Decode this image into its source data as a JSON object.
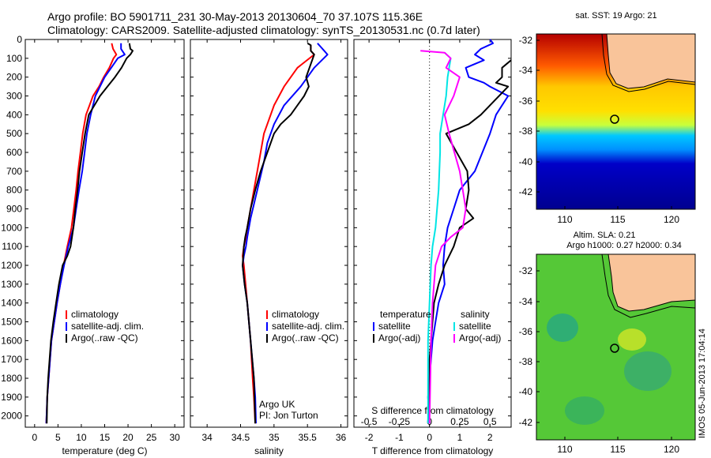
{
  "header": {
    "line1": "Argo profile: BO 5901711_231 30-May-2013 20130604_70 37.107S 115.36E",
    "line2": "Climatology: CARS2009. Satellite-adjusted climatology: synTS_20130531.nc (0.7d later)"
  },
  "colors": {
    "climatology": "#ff0000",
    "satellite": "#0000ff",
    "argo": "#000000",
    "salinity_satellite": "#00e5e5",
    "salinity_argo": "#ff00ff",
    "land": "#f9c49a"
  },
  "maps": {
    "sst_title": "sat. SST: 19 Argo: 21",
    "sla_title_1": "Altim. SLA: 0.21",
    "sla_title_2": "Argo h1000: 0.27 h2000: 0.34",
    "lat_ticks": [
      "-32",
      "-34",
      "-36",
      "-38",
      "-40",
      "-42"
    ],
    "lon_ticks": [
      "110",
      "115",
      "120"
    ],
    "timestamp": "IMOS 05-Jun-2013 17:04:14"
  },
  "legends": {
    "temp": [
      "climatology",
      "satellite-adj. clim.",
      "Argo(..raw -QC)"
    ],
    "sal": [
      "climatology",
      "satellite-adj. clim.",
      "Argo(..raw -QC)"
    ],
    "diff_headers": [
      "temperature",
      "salinity"
    ],
    "diff_temp": [
      "satellite",
      "Argo(-adj)"
    ],
    "diff_sal": [
      "satellite",
      "Argo(-adj)"
    ]
  },
  "annotations": {
    "argo_uk": "Argo UK",
    "pi": "PI: Jon Turton"
  },
  "chart_data": [
    {
      "type": "line",
      "xlabel": "temperature (deg C)",
      "ylabel": "",
      "xlim": [
        -2,
        32
      ],
      "ylim": [
        2060,
        0
      ],
      "xticks": [
        0,
        5,
        10,
        15,
        20,
        25,
        30
      ],
      "yticks": [
        0,
        100,
        200,
        300,
        400,
        500,
        600,
        700,
        800,
        900,
        1000,
        1100,
        1200,
        1300,
        1400,
        1500,
        1600,
        1700,
        1800,
        1900,
        2000
      ],
      "series": [
        {
          "name": "climatology",
          "x": [
            16.5,
            16.8,
            17.5,
            16.9,
            16.0,
            14.8,
            13.8,
            12.5,
            11.0,
            10.3,
            9.8,
            9.3,
            8.9,
            8.4,
            7.9,
            7.0,
            6.2,
            5.5,
            4.8,
            4.2,
            3.6,
            3.0,
            2.7,
            2.5
          ],
          "y": [
            20,
            50,
            80,
            100,
            150,
            200,
            250,
            300,
            400,
            500,
            600,
            700,
            800,
            900,
            1000,
            1100,
            1200,
            1300,
            1400,
            1500,
            1600,
            1800,
            1900,
            2040
          ]
        },
        {
          "name": "satellite-adj. clim.",
          "x": [
            18.5,
            18.5,
            19.3,
            17.8,
            16.4,
            15.0,
            13.0,
            12.0,
            11.2,
            10.7,
            10.2,
            9.5,
            8.9,
            8.3,
            7.2,
            6.3,
            5.5,
            4.8,
            4.2,
            3.6,
            3.0,
            2.7,
            2.5
          ],
          "y": [
            20,
            50,
            80,
            100,
            150,
            200,
            300,
            400,
            500,
            600,
            700,
            800,
            900,
            1000,
            1100,
            1200,
            1300,
            1400,
            1500,
            1600,
            1800,
            1900,
            2040
          ]
        },
        {
          "name": "Argo(..raw -QC)",
          "x": [
            20.3,
            20.5,
            21.0,
            20.5,
            19.7,
            18.6,
            17.2,
            15.6,
            14.0,
            12.8,
            11.6,
            10.8,
            10.2,
            9.6,
            9.2,
            8.7,
            8.3,
            7.7,
            7.0,
            6.0,
            5.2,
            4.6,
            4.0,
            3.5,
            2.9,
            2.7,
            2.6
          ],
          "y": [
            20,
            50,
            60,
            80,
            100,
            150,
            200,
            250,
            300,
            350,
            400,
            500,
            600,
            700,
            800,
            900,
            1000,
            1100,
            1150,
            1200,
            1300,
            1400,
            1500,
            1600,
            1800,
            1900,
            2040
          ]
        }
      ]
    },
    {
      "type": "line",
      "xlabel": "salinity",
      "ylabel": "",
      "xlim": [
        33.75,
        36.1
      ],
      "ylim": [
        2060,
        0
      ],
      "xticks": [
        34,
        34.5,
        35,
        35.5,
        36
      ],
      "series": [
        {
          "name": "climatology",
          "x": [
            35.55,
            35.55,
            35.6,
            35.35,
            35.15,
            35.0,
            34.85,
            34.8,
            34.75,
            34.7,
            34.65,
            34.6,
            34.58,
            34.55,
            34.53,
            34.55,
            34.6,
            34.65,
            34.68,
            34.7,
            34.72
          ],
          "y": [
            30,
            60,
            80,
            150,
            250,
            350,
            500,
            600,
            700,
            800,
            900,
            1000,
            1050,
            1100,
            1150,
            1200,
            1400,
            1600,
            1800,
            1900,
            2040
          ]
        },
        {
          "name": "satellite-adj. clim.",
          "x": [
            35.65,
            35.7,
            35.75,
            35.8,
            35.6,
            35.4,
            35.15,
            35.0,
            34.9,
            34.85,
            34.75,
            34.65,
            34.6,
            34.58,
            34.55,
            34.53,
            34.56,
            34.6,
            34.65,
            34.7,
            34.72,
            34.73
          ],
          "y": [
            20,
            40,
            60,
            80,
            150,
            250,
            350,
            450,
            550,
            650,
            800,
            950,
            1050,
            1100,
            1150,
            1200,
            1300,
            1400,
            1600,
            1800,
            1900,
            2040
          ]
        },
        {
          "name": "Argo(..raw -QC)",
          "x": [
            35.5,
            35.55,
            35.55,
            35.6,
            35.48,
            35.52,
            35.45,
            35.25,
            35.1,
            35.0,
            34.9,
            34.8,
            34.72,
            34.65,
            34.6,
            34.57,
            34.55,
            34.53,
            34.56,
            34.6,
            34.65,
            34.7,
            34.72
          ],
          "y": [
            20,
            30,
            60,
            80,
            200,
            250,
            300,
            400,
            450,
            500,
            600,
            700,
            800,
            900,
            1000,
            1050,
            1100,
            1200,
            1300,
            1400,
            1600,
            1800,
            2040
          ]
        }
      ]
    },
    {
      "type": "line",
      "xlabel": "T difference from climatology",
      "xlim": [
        -2.5,
        2.7
      ],
      "xticks": [
        -2,
        -1,
        0,
        1,
        2
      ],
      "secondary_xlabel": "S difference from climatology",
      "secondary_xticks": [
        -0.5,
        -0.25,
        0,
        0.25,
        0.5
      ],
      "ylim": [
        2060,
        0
      ],
      "series": [
        {
          "name": "temperature satellite",
          "x": [
            2.0,
            2.1,
            1.7,
            1.5,
            1.8,
            1.2,
            1.3,
            1.8,
            2.0,
            2.6,
            2.4,
            2.2,
            2.0,
            1.5,
            1.0,
            0.8,
            0.6,
            0.5,
            0.45,
            0.5,
            0.3,
            0.2,
            0.1,
            0.05,
            0.0,
            -0.05,
            0.0
          ],
          "y": [
            0,
            20,
            50,
            80,
            110,
            150,
            200,
            230,
            250,
            300,
            350,
            400,
            500,
            700,
            800,
            900,
            1000,
            1100,
            1200,
            1300,
            1400,
            1500,
            1600,
            1700,
            1800,
            1900,
            2040
          ]
        },
        {
          "name": "temperature Argo(-adj)",
          "x": [
            2.7,
            2.4,
            2.4,
            2.2,
            2.6,
            1.7,
            1.3,
            0.55,
            0.9,
            1.25,
            1.3,
            1.2,
            1.45,
            1.0,
            0.8,
            0.5,
            0.3,
            0.15,
            0.1,
            0.05,
            0.0,
            0.0,
            -0.05
          ],
          "y": [
            110,
            150,
            200,
            230,
            250,
            400,
            450,
            500,
            600,
            700,
            800,
            900,
            950,
            1000,
            1100,
            1200,
            1300,
            1400,
            1500,
            1600,
            1700,
            1800,
            2040
          ]
        },
        {
          "name": "salinity satellite",
          "x": [
            0.5,
            0.7,
            0.6,
            0.55,
            0.45,
            0.35,
            0.35,
            0.3,
            0.2,
            0.1,
            0.05,
            0.0,
            -0.05,
            -0.05
          ],
          "y": [
            70,
            100,
            200,
            300,
            400,
            500,
            600,
            800,
            1000,
            1100,
            1200,
            1400,
            1600,
            2040
          ]
        },
        {
          "name": "salinity Argo(-adj)",
          "x": [
            -0.3,
            0.5,
            0.7,
            0.55,
            1.0,
            0.8,
            0.5,
            0.65,
            1.0,
            1.1,
            1.2,
            1.1,
            0.7,
            0.4,
            0.2,
            0.1,
            0.05,
            0.0
          ],
          "y": [
            60,
            70,
            100,
            150,
            200,
            300,
            400,
            500,
            700,
            800,
            900,
            1000,
            1050,
            1100,
            1200,
            1400,
            1600,
            2040
          ]
        }
      ]
    }
  ]
}
